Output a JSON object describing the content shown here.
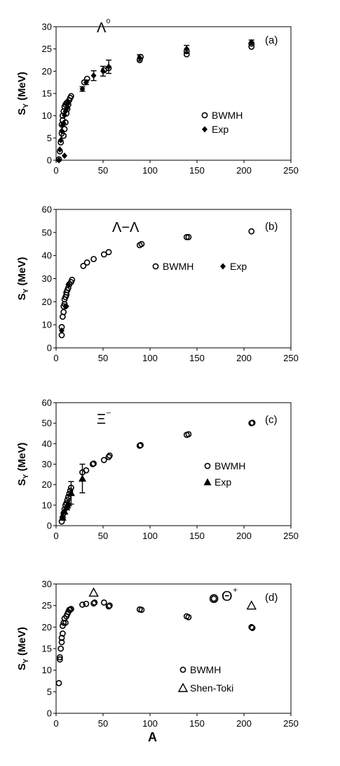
{
  "chart_data": [
    {
      "type": "scatter",
      "panel_label": "(a)",
      "annotation": "Λ⁰",
      "ylabel": "S_Y (MeV)",
      "xlabel": "",
      "xlim": [
        0,
        250
      ],
      "ylim": [
        0,
        30
      ],
      "xticks": [
        0,
        50,
        100,
        150,
        200,
        250
      ],
      "yticks": [
        0,
        5,
        10,
        15,
        20,
        25,
        30
      ],
      "legend": [
        "BWMH",
        "Exp"
      ],
      "legend_position": "right-middle",
      "series": [
        {
          "name": "BWMH",
          "marker": "circle-open",
          "x": [
            3,
            4,
            5,
            6,
            6,
            7,
            7,
            8,
            8,
            9,
            9,
            10,
            10,
            11,
            11,
            12,
            12,
            13,
            14,
            15,
            16,
            30,
            33,
            51,
            56,
            89,
            90,
            139,
            139,
            208,
            208
          ],
          "y": [
            0.2,
            2,
            4,
            6,
            8,
            9,
            10,
            5.5,
            11,
            7,
            12,
            8.5,
            12.5,
            10.5,
            12.8,
            11.5,
            13,
            12.5,
            13.5,
            14,
            14.4,
            17.5,
            18.3,
            20.2,
            20.7,
            22.5,
            23.2,
            23.8,
            24.5,
            25.5,
            26.2
          ]
        },
        {
          "name": "Exp",
          "marker": "diamond",
          "x": [
            3,
            4,
            5,
            6,
            7,
            8,
            9,
            9,
            10,
            11,
            12,
            13,
            28,
            32,
            40,
            50,
            56,
            89,
            139,
            208
          ],
          "y": [
            0,
            2.4,
            4.5,
            6.6,
            7.9,
            8.3,
            1,
            10.1,
            11,
            11.5,
            11.9,
            12.8,
            16,
            17.5,
            19,
            20,
            21,
            23,
            25,
            26.5
          ],
          "yerr": [
            0,
            0,
            0,
            0,
            0,
            0,
            0,
            0,
            0,
            0,
            0,
            0,
            0.5,
            0.5,
            1.1,
            1.1,
            1.5,
            0.7,
            0.8,
            0.5
          ]
        }
      ]
    },
    {
      "type": "scatter",
      "panel_label": "(b)",
      "annotation": "Λ−Λ",
      "ylabel": "S_Y (MeV)",
      "xlabel": "",
      "xlim": [
        0,
        250
      ],
      "ylim": [
        0,
        60
      ],
      "xticks": [
        0,
        50,
        100,
        150,
        200,
        250
      ],
      "yticks": [
        0,
        10,
        20,
        30,
        40,
        50,
        60
      ],
      "legend": [
        "BWMH",
        "Exp"
      ],
      "legend_position": "middle-right",
      "series": [
        {
          "name": "BWMH",
          "marker": "circle-open",
          "x": [
            6,
            6,
            7,
            8,
            8,
            9,
            9,
            10,
            11,
            11,
            12,
            13,
            14,
            16,
            17,
            29,
            33,
            40,
            51,
            56,
            89,
            91,
            139,
            141,
            208
          ],
          "y": [
            5.5,
            9,
            13.5,
            15.5,
            18,
            19,
            21,
            22,
            23,
            24,
            25,
            26,
            27.5,
            28.5,
            29.5,
            35.5,
            37,
            38.5,
            40.5,
            41.5,
            44.5,
            45,
            48,
            48,
            50.5
          ]
        },
        {
          "name": "Exp",
          "marker": "diamond",
          "x": [
            6,
            10,
            11,
            13
          ],
          "y": [
            7.5,
            18,
            18,
            27.5
          ]
        }
      ]
    },
    {
      "type": "scatter",
      "panel_label": "(c)",
      "annotation": "Ξ⁻",
      "ylabel": "S_Y (MeV)",
      "xlabel": "",
      "xlim": [
        0,
        250
      ],
      "ylim": [
        0,
        60
      ],
      "xticks": [
        0,
        50,
        100,
        150,
        200,
        250
      ],
      "yticks": [
        0,
        10,
        20,
        30,
        40,
        50,
        60
      ],
      "legend": [
        "BWMH",
        "Exp"
      ],
      "legend_position": "lower-right",
      "series": [
        {
          "name": "BWMH",
          "marker": "circle-open",
          "x": [
            6,
            7,
            8,
            9,
            10,
            11,
            12,
            13,
            14,
            15,
            16,
            28,
            32,
            39,
            40,
            51,
            56,
            57,
            89,
            90,
            139,
            141,
            208,
            209
          ],
          "y": [
            2,
            4,
            6,
            8,
            10,
            11,
            12.5,
            14,
            15.5,
            17,
            18.5,
            26,
            27,
            30,
            30.3,
            32,
            33.5,
            34.2,
            39,
            39.3,
            44.3,
            44.6,
            50,
            50.2
          ]
        },
        {
          "name": "Exp",
          "marker": "triangle-filled",
          "x": [
            7,
            9,
            11,
            12,
            13,
            16,
            28
          ],
          "y": [
            4,
            7,
            9,
            10,
            11,
            16,
            23
          ],
          "yerr": [
            0,
            0,
            0,
            0,
            0,
            5.5,
            7
          ]
        }
      ]
    },
    {
      "type": "scatter",
      "panel_label": "(d)",
      "annotation": "Θ⁺",
      "ylabel": "S_Y (MeV)",
      "xlabel": "A",
      "xlim": [
        0,
        250
      ],
      "ylim": [
        0,
        30
      ],
      "xticks": [
        0,
        50,
        100,
        150,
        200,
        250
      ],
      "yticks": [
        0,
        5,
        10,
        15,
        20,
        25,
        30
      ],
      "legend": [
        "BWMH",
        "Shen-Toki"
      ],
      "legend_position": "lower-middle",
      "series": [
        {
          "name": "BWMH",
          "marker": "circle-open",
          "x": [
            3,
            4,
            4,
            5,
            6,
            6,
            7,
            7,
            8,
            9,
            10,
            11,
            12,
            13,
            14,
            15,
            16,
            28,
            32,
            40,
            41,
            51,
            56,
            57,
            89,
            91,
            139,
            141,
            168,
            208,
            209
          ],
          "y": [
            7,
            12.5,
            13,
            15,
            16.5,
            17.5,
            18.5,
            20.3,
            21,
            22,
            21,
            22.5,
            23,
            23.5,
            24,
            24,
            24.2,
            25.2,
            25.4,
            25.5,
            25.7,
            25.7,
            24.8,
            25,
            24.1,
            24,
            22.5,
            22.3,
            26.6,
            20,
            19.8
          ]
        },
        {
          "name": "Shen-Toki",
          "marker": "triangle-open",
          "x": [
            40,
            208
          ],
          "y": [
            28,
            25
          ]
        }
      ]
    }
  ]
}
